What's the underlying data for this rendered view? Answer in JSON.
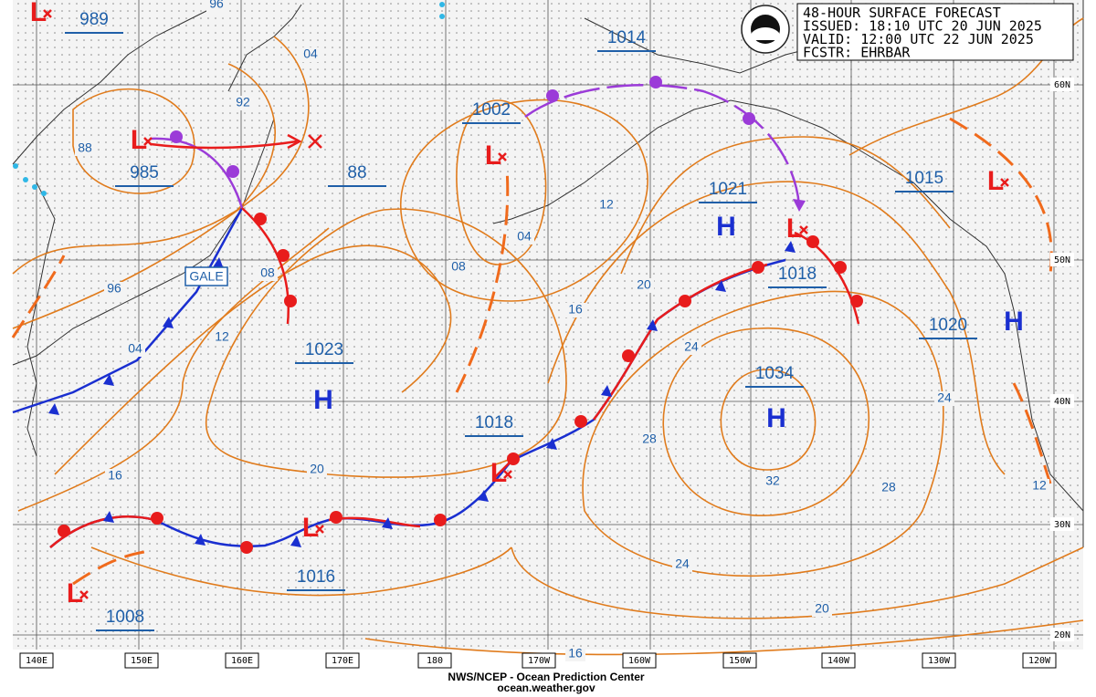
{
  "header": {
    "title": "48-HOUR SURFACE FORECAST",
    "issued": "ISSUED: 18:10 UTC 20 JUN 2025",
    "valid": "VALID:  12:00 UTC 22 JUN 2025",
    "forecaster": "FCSTR: EHRBAR"
  },
  "footer": {
    "center": "NWS/NCEP - Ocean Prediction Center",
    "url": "ocean.weather.gov"
  },
  "longitudes": [
    "140E",
    "150E",
    "160E",
    "170E",
    "180",
    "170W",
    "160W",
    "150W",
    "140W",
    "130W",
    "120W"
  ],
  "latitudes": [
    "60N",
    "50N",
    "40N",
    "30N",
    "20N"
  ],
  "centers": [
    {
      "type": "L",
      "pressure": "989"
    },
    {
      "type": "L",
      "pressure": "985"
    },
    {
      "type": "L",
      "pressure": "1002"
    },
    {
      "pressure": "1014"
    },
    {
      "type": "H",
      "pressure": "1021"
    },
    {
      "type": "L",
      "pressure": "1018"
    },
    {
      "pressure": "1015"
    },
    {
      "type": "L"
    },
    {
      "type": "H",
      "pressure": "1020"
    },
    {
      "type": "H",
      "pressure": "1023"
    },
    {
      "type": "H",
      "pressure": "1034"
    },
    {
      "type": "L",
      "pressure": "1018"
    },
    {
      "type": "L",
      "pressure": "1016"
    },
    {
      "type": "L",
      "pressure": "1008"
    },
    {
      "pressure": "88"
    }
  ],
  "isobar_labels": [
    "96",
    "04",
    "92",
    "88",
    "96",
    "04",
    "08",
    "12",
    "16",
    "20",
    "08",
    "04",
    "12",
    "16",
    "20",
    "24",
    "28",
    "32",
    "28",
    "24",
    "24",
    "20",
    "16",
    "12"
  ],
  "gale": "GALE"
}
